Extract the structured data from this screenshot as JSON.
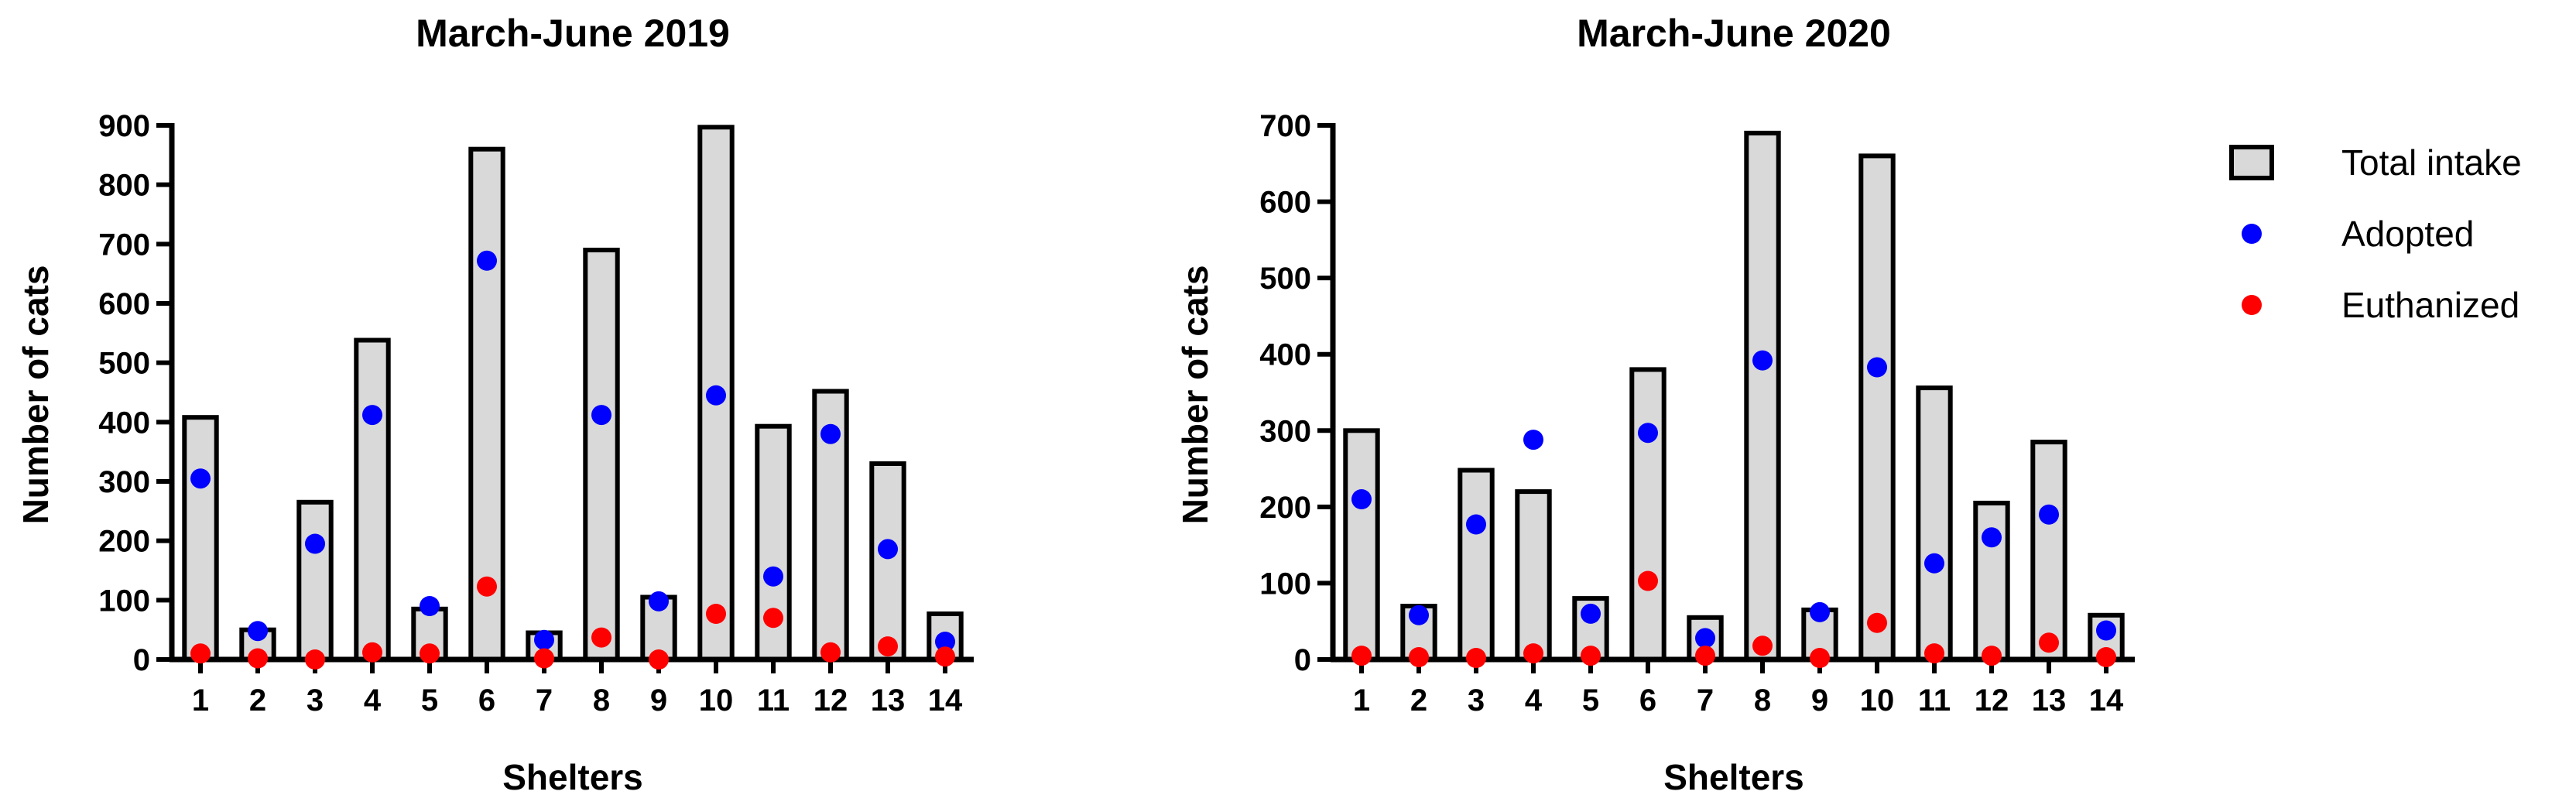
{
  "chart_data": [
    {
      "type": "bar",
      "title": "March-June 2019",
      "xlabel": "Shelters",
      "ylabel": "Number of cats",
      "ylim": [
        0,
        900
      ],
      "yticks": [
        0,
        100,
        200,
        300,
        400,
        500,
        600,
        700,
        800,
        900
      ],
      "categories": [
        "1",
        "2",
        "3",
        "4",
        "5",
        "6",
        "7",
        "8",
        "9",
        "10",
        "11",
        "12",
        "13",
        "14"
      ],
      "series": [
        {
          "name": "Total intake",
          "mark": "bar",
          "color": "#d9d9d9",
          "values": [
            408,
            50,
            265,
            538,
            85,
            860,
            45,
            690,
            105,
            897,
            393,
            452,
            330,
            77
          ]
        },
        {
          "name": "Adopted",
          "mark": "point",
          "color": "#0000ff",
          "values": [
            305,
            48,
            195,
            412,
            90,
            672,
            33,
            412,
            98,
            445,
            140,
            380,
            186,
            30
          ]
        },
        {
          "name": "Euthanized",
          "mark": "point",
          "color": "#ff0000",
          "values": [
            10,
            2,
            0,
            12,
            10,
            123,
            2,
            37,
            0,
            77,
            70,
            12,
            22,
            5
          ]
        }
      ],
      "grid": false
    },
    {
      "type": "bar",
      "title": "March-June 2020",
      "xlabel": "Shelters",
      "ylabel": "Number of cats",
      "ylim": [
        0,
        700
      ],
      "yticks": [
        0,
        100,
        200,
        300,
        400,
        500,
        600,
        700
      ],
      "categories": [
        "1",
        "2",
        "3",
        "4",
        "5",
        "6",
        "7",
        "8",
        "9",
        "10",
        "11",
        "12",
        "13",
        "14"
      ],
      "series": [
        {
          "name": "Total intake",
          "mark": "bar",
          "color": "#d9d9d9",
          "values": [
            300,
            70,
            248,
            220,
            80,
            380,
            55,
            690,
            65,
            660,
            356,
            205,
            285,
            58
          ]
        },
        {
          "name": "Adopted",
          "mark": "point",
          "color": "#0000ff",
          "values": [
            210,
            58,
            177,
            288,
            60,
            297,
            28,
            392,
            62,
            383,
            126,
            160,
            190,
            38
          ]
        },
        {
          "name": "Euthanized",
          "mark": "point",
          "color": "#ff0000",
          "values": [
            5,
            3,
            2,
            8,
            5,
            103,
            5,
            18,
            2,
            48,
            8,
            5,
            22,
            3
          ]
        }
      ],
      "grid": false
    }
  ],
  "legend": {
    "placement": "right",
    "items": [
      {
        "label": "Total intake",
        "marker": "box",
        "color": "#d9d9d9"
      },
      {
        "label": "Adopted",
        "marker": "dot",
        "color": "#0000ff"
      },
      {
        "label": "Euthanized",
        "marker": "dot",
        "color": "#ff0000"
      }
    ]
  }
}
